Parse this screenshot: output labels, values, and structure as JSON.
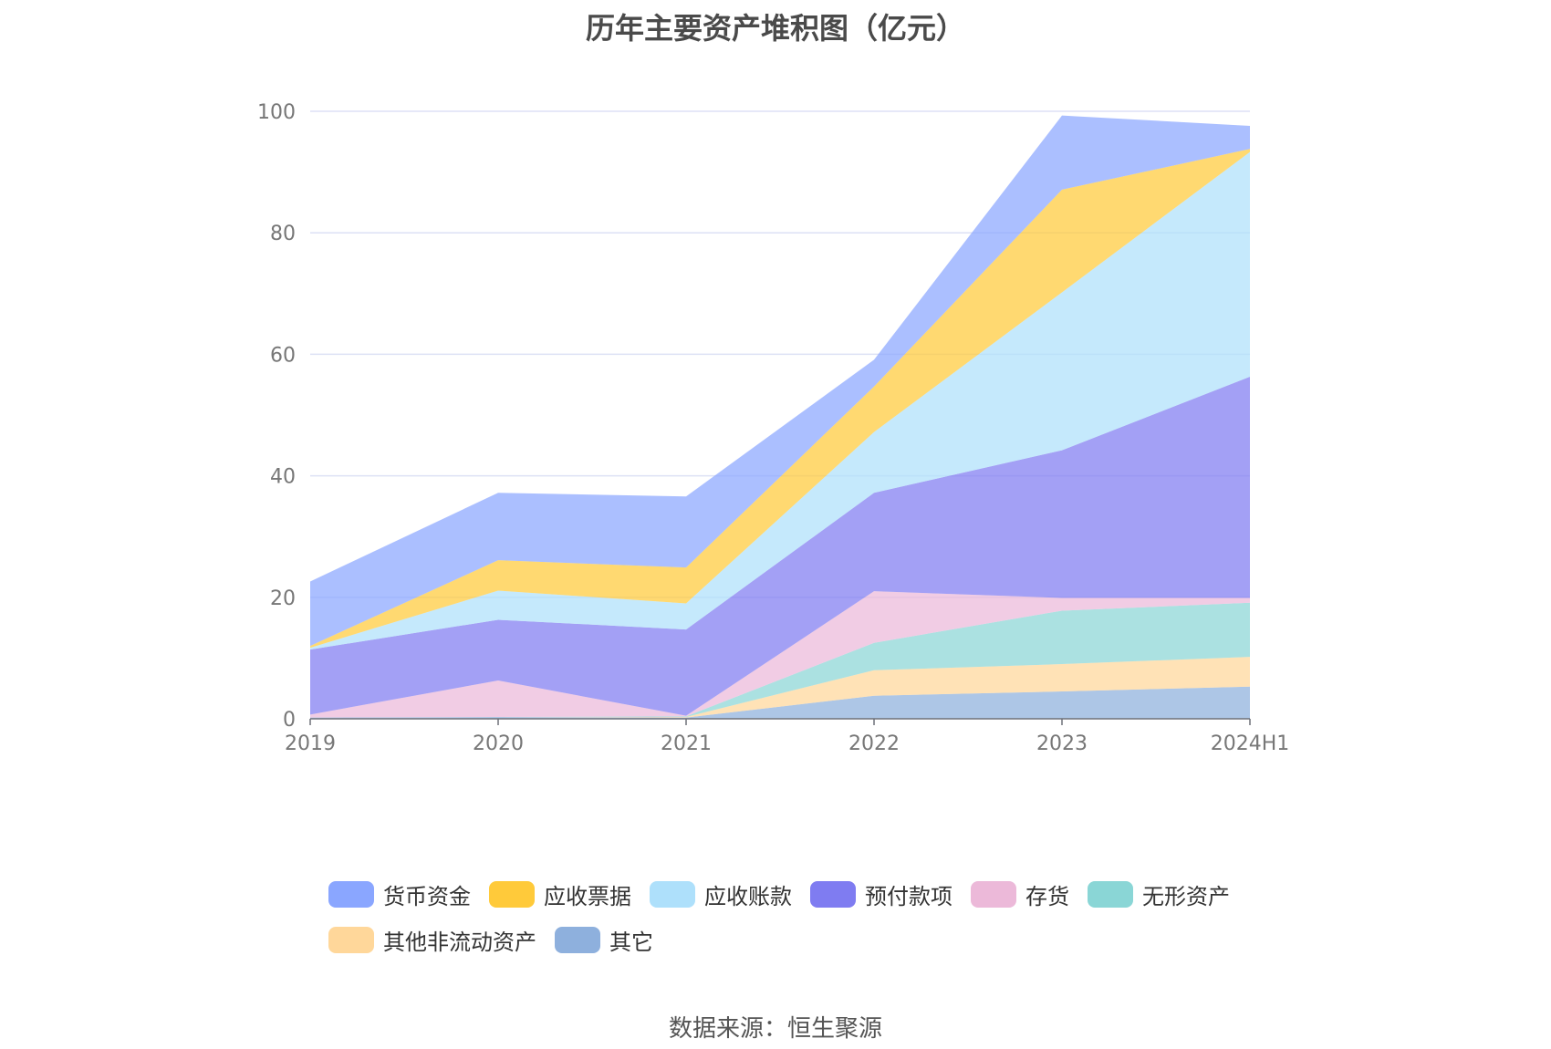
{
  "chart_data": {
    "type": "area",
    "title": "历年主要资产堆积图（亿元）",
    "source": "数据来源：恒生聚源",
    "categories": [
      "2019",
      "2020",
      "2021",
      "2022",
      "2023",
      "2024H1"
    ],
    "ylim": [
      0,
      100
    ],
    "yticks": [
      0,
      20,
      40,
      60,
      80,
      100
    ],
    "grid": true,
    "legend_position": "bottom",
    "stacked": true,
    "series": [
      {
        "name": "其它",
        "color": "#8eb0dd",
        "values": [
          0.2,
          0.3,
          0.2,
          3.8,
          4.5,
          5.3
        ]
      },
      {
        "name": "其他非流动资产",
        "color": "#ffd79a",
        "values": [
          0,
          0,
          0.1,
          4.2,
          4.5,
          4.9
        ]
      },
      {
        "name": "无形资产",
        "color": "#8ad6d6",
        "values": [
          0,
          0,
          0.1,
          4.5,
          8.8,
          8.9
        ]
      },
      {
        "name": "存货",
        "color": "#ecb9d9",
        "values": [
          0.5,
          6.0,
          0.1,
          8.5,
          2.1,
          0.8
        ]
      },
      {
        "name": "预付款项",
        "color": "#7f7cf1",
        "values": [
          10.7,
          10.0,
          14.2,
          16.2,
          24.3,
          36.4
        ]
      },
      {
        "name": "应收账款",
        "color": "#aee0fb",
        "values": [
          0.3,
          4.8,
          4.3,
          10.0,
          26.0,
          37.0
        ]
      },
      {
        "name": "应收票据",
        "color": "#ffca3a",
        "values": [
          0.3,
          5.0,
          5.9,
          7.5,
          16.9,
          0.5
        ]
      },
      {
        "name": "货币资金",
        "color": "#8aa6ff",
        "values": [
          10.6,
          11.1,
          11.7,
          4.4,
          12.2,
          3.8
        ]
      }
    ]
  },
  "legend": {
    "rows": [
      [
        {
          "name": "货币资金",
          "color": "#8aa6ff"
        },
        {
          "name": "应收票据",
          "color": "#ffca3a"
        },
        {
          "name": "应收账款",
          "color": "#aee0fb"
        },
        {
          "name": "预付款项",
          "color": "#7f7cf1"
        },
        {
          "name": "存货",
          "color": "#ecb9d9"
        },
        {
          "name": "无形资产",
          "color": "#8ad6d6"
        }
      ],
      [
        {
          "name": "其他非流动资产",
          "color": "#ffd79a"
        },
        {
          "name": "其它",
          "color": "#8eb0dd"
        }
      ]
    ]
  }
}
